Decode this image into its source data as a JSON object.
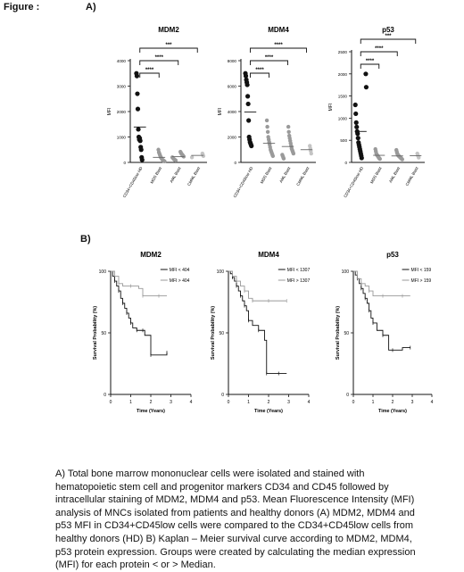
{
  "figure_label": "Figure :",
  "panel_a_label": "A)",
  "panel_b_label": "B)",
  "caption": "A) Total bone marrow mononuclear cells were isolated and stained with hematopoietic stem cell and progenitor markers CD34 and CD45 followed by intracellular staining of MDM2, MDM4 and p53. Mean Fluorescence Intensity (MFI) analysis of MNCs isolated from patients and healthy donors (A) MDM2, MDM4 and p53 MFI in CD34+CD45low cells were compared to the CD34+CD45low cells from healthy donors (HD)  B) Kaplan – Meier survival curve according to MDM2, MDM4, p53 protein expression. Groups were created by calculating the median expression (MFI) for each protein < or > Median.",
  "colors": {
    "group1": "#111111",
    "group2": "#9a9a9a",
    "group3": "#9a9a9a",
    "group4": "#c4c4c4"
  },
  "chart_data": [
    {
      "type": "scatter",
      "title": "MDM2",
      "ylabel": "MFI",
      "ylim": [
        0,
        4000
      ],
      "yticks": [
        "0",
        "1000",
        "2000",
        "3000",
        "4000"
      ],
      "categories": [
        "CD34+CD45low HD",
        "MDS Blast",
        "AML Blast",
        "CMML Blast"
      ],
      "significance": [
        "****",
        "****",
        "***"
      ],
      "series": [
        {
          "values": [
            3500,
            3400,
            2700,
            2100,
            1300,
            1000,
            900,
            950,
            850,
            600,
            500,
            200,
            100
          ]
        },
        {
          "values": [
            500,
            400,
            350,
            300,
            250,
            200,
            180,
            150,
            120,
            100,
            80,
            60,
            50,
            40
          ]
        },
        {
          "values": [
            420,
            380,
            350,
            320,
            300,
            280,
            250,
            230,
            200,
            180,
            160,
            140,
            120,
            100,
            90,
            80
          ]
        },
        {
          "values": [
            350,
            300,
            250,
            200
          ]
        }
      ]
    },
    {
      "type": "scatter",
      "title": "MDM4",
      "ylabel": "MFI",
      "ylim": [
        0,
        8000
      ],
      "yticks": [
        "0",
        "2000",
        "4000",
        "6000",
        "8000"
      ],
      "categories": [
        "CD34+CD45low HD",
        "MDS Blast",
        "AML Blast",
        "CMML Blast"
      ],
      "significance": [
        "****",
        "****",
        "****"
      ],
      "series": [
        {
          "values": [
            7000,
            6800,
            6500,
            6300,
            6100,
            5200,
            4600,
            3300,
            2000,
            1800,
            1600,
            1500,
            1400,
            1300
          ]
        },
        {
          "values": [
            3300,
            2800,
            2400,
            2000,
            1800,
            1600,
            1400,
            1200,
            1000,
            900,
            800,
            700,
            600,
            500
          ]
        },
        {
          "values": [
            2800,
            2400,
            2100,
            1900,
            1700,
            1500,
            1300,
            1100,
            1000,
            900,
            800,
            700,
            600,
            500,
            400,
            300
          ]
        },
        {
          "values": [
            1300,
            1100,
            900,
            700
          ]
        }
      ]
    },
    {
      "type": "scatter",
      "title": "p53",
      "ylabel": "MFI",
      "ylim": [
        0,
        2500
      ],
      "yticks": [
        "0",
        "500",
        "1000",
        "1500",
        "2000",
        "2500"
      ],
      "categories": [
        "CD34+CD45low HD",
        "MDS Blast",
        "AML Blast",
        "CMML Blast"
      ],
      "significance": [
        "****",
        "****",
        "***"
      ],
      "series": [
        {
          "values": [
            2000,
            1700,
            1300,
            1100,
            900,
            800,
            700,
            650,
            550,
            450,
            400,
            350,
            300,
            250,
            200,
            150,
            100
          ]
        },
        {
          "values": [
            300,
            250,
            200,
            180,
            160,
            150,
            130,
            120,
            100,
            90,
            80
          ]
        },
        {
          "values": [
            280,
            240,
            200,
            180,
            160,
            150,
            140,
            130,
            120,
            110,
            100,
            90,
            80,
            70
          ]
        },
        {
          "values": [
            200,
            160,
            140,
            110
          ]
        }
      ]
    },
    {
      "type": "line",
      "title": "MDM2",
      "xlabel": "Time (Years)",
      "ylabel": "Survival Probability (%)",
      "xlim": [
        0,
        4
      ],
      "ylim": [
        0,
        100
      ],
      "xticks": [
        "0",
        "1",
        "2",
        "3",
        "4"
      ],
      "yticks": [
        "0",
        "50",
        "100"
      ],
      "series": [
        {
          "name": "MFI < 404",
          "x": [
            0,
            0.1,
            0.2,
            0.3,
            0.4,
            0.5,
            0.6,
            0.7,
            0.8,
            0.9,
            1.0,
            1.1,
            1.3,
            1.5,
            1.6,
            1.7,
            2.0,
            2.4,
            2.8
          ],
          "y": [
            100,
            96,
            92,
            88,
            84,
            78,
            74,
            70,
            66,
            62,
            58,
            54,
            52,
            52,
            52,
            48,
            32,
            32,
            34
          ]
        },
        {
          "name": "MFI > 404",
          "x": [
            0,
            0.2,
            0.4,
            0.6,
            1.0,
            1.4,
            1.6,
            2.0,
            2.4,
            2.8
          ],
          "y": [
            100,
            96,
            90,
            88,
            88,
            86,
            80,
            80,
            80,
            80
          ]
        }
      ]
    },
    {
      "type": "line",
      "title": "MDM4",
      "xlabel": "Time (Years)",
      "ylabel": "Survival Probability (%)",
      "xlim": [
        0,
        4
      ],
      "ylim": [
        0,
        100
      ],
      "xticks": [
        "0",
        "1",
        "2",
        "3",
        "4"
      ],
      "yticks": [
        "0",
        "50",
        "100"
      ],
      "series": [
        {
          "name": "MFI < 1307",
          "x": [
            0,
            0.1,
            0.2,
            0.3,
            0.4,
            0.5,
            0.6,
            0.7,
            0.8,
            0.9,
            1.0,
            1.2,
            1.5,
            1.8,
            1.9,
            2.0,
            2.5,
            2.9
          ],
          "y": [
            100,
            98,
            95,
            92,
            88,
            84,
            80,
            76,
            72,
            68,
            60,
            56,
            52,
            44,
            17,
            17,
            17,
            17
          ]
        },
        {
          "name": "MFI > 1307",
          "x": [
            0,
            0.2,
            0.4,
            0.6,
            0.8,
            1.0,
            1.2,
            1.5,
            2.0,
            2.5,
            2.9
          ],
          "y": [
            100,
            96,
            92,
            88,
            84,
            78,
            76,
            76,
            76,
            76,
            76
          ]
        }
      ]
    },
    {
      "type": "line",
      "title": "p53",
      "xlabel": "Time (Years)",
      "ylabel": "Survival Probability (%)",
      "xlim": [
        0,
        4
      ],
      "ylim": [
        0,
        100
      ],
      "xticks": [
        "0",
        "1",
        "2",
        "3",
        "4"
      ],
      "yticks": [
        "0",
        "50",
        "100"
      ],
      "series": [
        {
          "name": "MFI < 159",
          "x": [
            0,
            0.1,
            0.2,
            0.3,
            0.4,
            0.5,
            0.6,
            0.7,
            0.8,
            0.9,
            1.0,
            1.2,
            1.5,
            1.8,
            2.0,
            2.5,
            2.9
          ],
          "y": [
            100,
            97,
            94,
            90,
            86,
            82,
            78,
            74,
            68,
            62,
            58,
            52,
            48,
            36,
            36,
            38,
            38
          ]
        },
        {
          "name": "MFI > 159",
          "x": [
            0,
            0.2,
            0.4,
            0.6,
            0.8,
            1.0,
            1.5,
            2.0,
            2.5,
            2.9
          ],
          "y": [
            100,
            94,
            90,
            88,
            84,
            80,
            80,
            80,
            80,
            80
          ]
        }
      ]
    }
  ]
}
